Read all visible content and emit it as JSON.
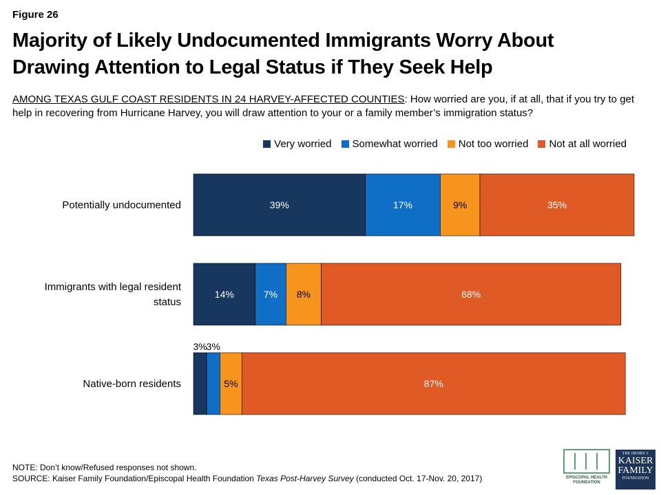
{
  "figure_label": "Figure 26",
  "title_line1": "Majority of Likely Undocumented Immigrants Worry About",
  "title_line2": "Drawing Attention to Legal Status if They Seek Help",
  "question_prefix": "AMONG TEXAS GULF COAST RESIDENTS IN 24 HARVEY-AFFECTED COUNTIES",
  "question_text": ": How worried are you, if at all, that if you try to get help in recovering from Hurricane Harvey, you will draw attention to your or a family member’s immigration status?",
  "note": "NOTE: Don’t know/Refused responses not shown.",
  "source_prefix": "SOURCE: Kaiser Family Foundation/Episcopal Health Foundation ",
  "source_italic": "Texas Post-Harvey Survey",
  "source_suffix": " (conducted Oct. 17-Nov. 20, 2017)",
  "logos": {
    "ehf_line1": "EPISCOPAL HEALTH",
    "ehf_line2": "FOUNDATION",
    "kff_line1": "THE HENRY J.",
    "kff_line2": "KAISER",
    "kff_line3": "FAMILY",
    "kff_line4": "FOUNDATION"
  },
  "chart_data": {
    "type": "bar",
    "orientation": "horizontal",
    "stacked": true,
    "categories": [
      "Potentially undocumented",
      "Immigrants with legal resident status",
      "Native-born residents"
    ],
    "category_lines": [
      [
        "Potentially undocumented"
      ],
      [
        "Immigrants with legal resident",
        "status"
      ],
      [
        "Native-born residents"
      ]
    ],
    "series": [
      {
        "name": "Very worried",
        "color": "#17375e",
        "values": [
          39,
          14,
          3
        ]
      },
      {
        "name": "Somewhat worried",
        "color": "#0f6fc6",
        "values": [
          17,
          7,
          3
        ]
      },
      {
        "name": "Not too worried",
        "color": "#f7941d",
        "values": [
          9,
          8,
          5
        ]
      },
      {
        "name": "Not at all worried",
        "color": "#e05a26",
        "values": [
          35,
          68,
          87
        ]
      }
    ],
    "xlim": [
      0,
      100
    ],
    "legend_position": "top-right",
    "grid": false
  }
}
